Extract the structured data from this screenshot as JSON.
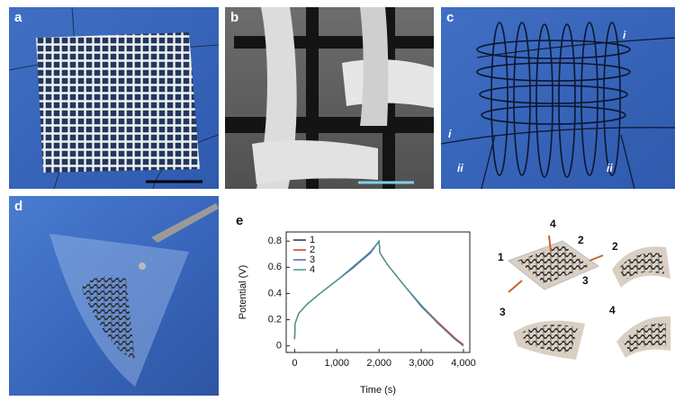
{
  "panels": {
    "a": "a",
    "b": "b",
    "c": "c",
    "d": "d",
    "e": "e"
  },
  "panel_c_annotations": [
    "i",
    "i",
    "ii",
    "ii"
  ],
  "illustration_labels": [
    "1",
    "4",
    "2",
    "3",
    "2",
    "3",
    "4"
  ],
  "chart_data": {
    "type": "line",
    "x_label": "Time (s)",
    "y_label": "Potential (V)",
    "x": [
      0,
      10,
      100,
      300,
      600,
      1000,
      1400,
      1800,
      2000,
      2020,
      2200,
      2600,
      3000,
      3400,
      3800,
      4000
    ],
    "series": [
      {
        "name": "1",
        "color": "#1f2a5a",
        "values": [
          0.05,
          0.17,
          0.25,
          0.32,
          0.4,
          0.5,
          0.6,
          0.72,
          0.8,
          0.71,
          0.62,
          0.46,
          0.31,
          0.17,
          0.05,
          0.0
        ]
      },
      {
        "name": "2",
        "color": "#d9352a",
        "values": [
          0.05,
          0.17,
          0.25,
          0.32,
          0.4,
          0.5,
          0.6,
          0.72,
          0.8,
          0.71,
          0.62,
          0.46,
          0.31,
          0.18,
          0.06,
          0.01
        ]
      },
      {
        "name": "3",
        "color": "#5a5fc8",
        "values": [
          0.05,
          0.17,
          0.25,
          0.32,
          0.4,
          0.5,
          0.6,
          0.71,
          0.8,
          0.71,
          0.62,
          0.46,
          0.3,
          0.17,
          0.05,
          0.0
        ]
      },
      {
        "name": "4",
        "color": "#3f9a8a",
        "values": [
          0.05,
          0.17,
          0.25,
          0.32,
          0.4,
          0.5,
          0.61,
          0.72,
          0.8,
          0.71,
          0.62,
          0.46,
          0.31,
          0.17,
          0.05,
          0.0
        ]
      }
    ],
    "xlim": [
      -200,
      4150
    ],
    "ylim": [
      -0.05,
      0.87
    ],
    "xticks": [
      0,
      {
        "value": 1000,
        "label": "1,000"
      },
      {
        "value": 2000,
        "label": "2,000"
      },
      {
        "value": 3000,
        "label": "3,000"
      },
      {
        "value": 4000,
        "label": "4,000"
      }
    ],
    "yticks": [
      0,
      0.2,
      0.4,
      0.6,
      0.8
    ],
    "legend": "upper-left"
  }
}
